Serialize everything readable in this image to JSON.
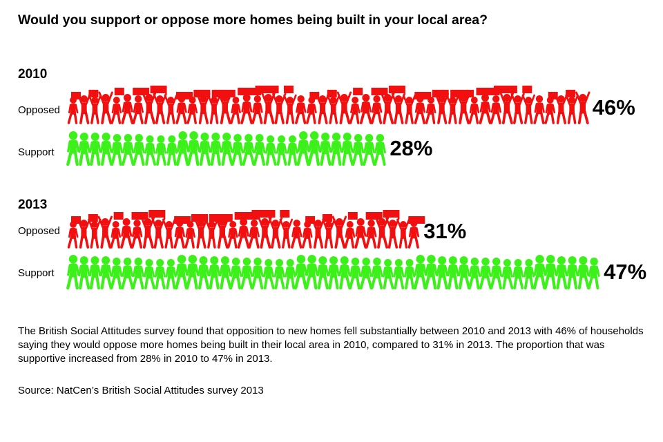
{
  "title": "Would you support or oppose more homes being built in your local area?",
  "colors": {
    "opposed": "#f20f0f",
    "support": "#3cf01a"
  },
  "chart_data": {
    "type": "bar",
    "title": "Would you support or oppose more homes being built in your local area?",
    "groups": [
      {
        "year": "2010",
        "rows": [
          {
            "label": "Opposed",
            "value": 46,
            "value_label": "46%"
          },
          {
            "label": "Support",
            "value": 28,
            "value_label": "28%"
          }
        ]
      },
      {
        "year": "2013",
        "rows": [
          {
            "label": "Opposed",
            "value": 31,
            "value_label": "31%"
          },
          {
            "label": "Support",
            "value": 47,
            "value_label": "47%"
          }
        ]
      }
    ],
    "unit": "%",
    "xlim": [
      0,
      50
    ]
  },
  "description": "The British Social Attitudes survey found that opposition to new homes fell substantially between 2010 and 2013 with 46% of households saying they would oppose more homes being built in their local area in 2010, compared to 31% in 2013.  The proportion that was supportive increased from 28% in 2010 to 47% in 2013.",
  "source": "Source: NatCen’s British Social Attitudes survey 2013"
}
